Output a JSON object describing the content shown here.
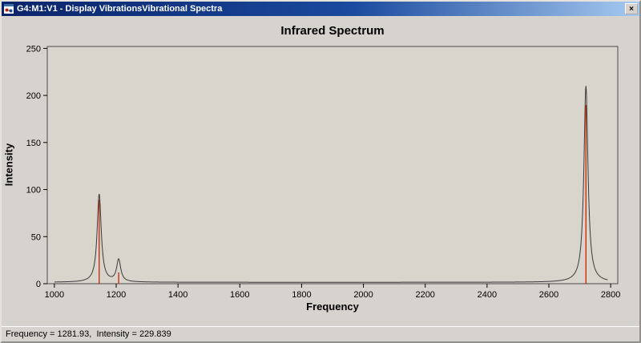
{
  "window": {
    "title": "G4:M1:V1 - Display VibrationsVibrational Spectra",
    "close_label": "×"
  },
  "status_bar": {
    "text": "Frequency = 1281.93,  Intensity = 229.839",
    "frequency": "1281.93",
    "intensity": "229.839"
  },
  "chart_data": {
    "type": "line",
    "title": "Infrared Spectrum",
    "xlabel": "Frequency",
    "ylabel": "Intensity",
    "xlim": [
      977,
      2823
    ],
    "ylim": [
      0,
      252
    ],
    "x_ticks": [
      1000,
      1200,
      1400,
      1600,
      1800,
      2000,
      2200,
      2400,
      2600,
      2800
    ],
    "y_ticks": [
      0,
      50,
      100,
      150,
      200,
      250
    ],
    "grid": false,
    "legend": "none",
    "curve_color": "#3a3a3a",
    "stick_color": "#cc2200",
    "plot_bg": "#d8d5cd",
    "lorentzian_hwhm": 8,
    "baseline": 1.5,
    "curve_range": [
      1000,
      2790
    ],
    "peaks": [
      {
        "frequency": 1145,
        "curve_height": 95,
        "stick_height": 89
      },
      {
        "frequency": 1208,
        "curve_height": 25,
        "stick_height": 12
      },
      {
        "frequency": 2720,
        "curve_height": 210,
        "stick_height": 190
      }
    ]
  }
}
